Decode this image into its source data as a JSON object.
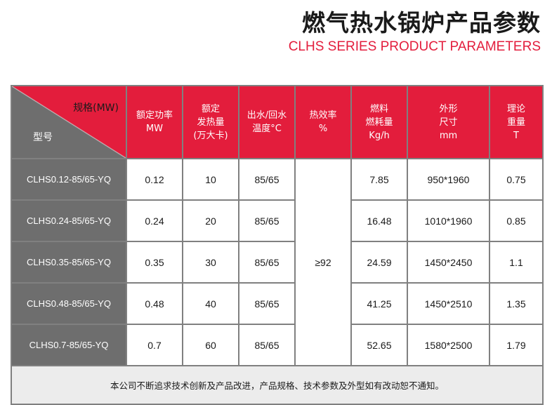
{
  "title_cn": "燃气热水锅炉产品参数",
  "title_en": "CLHS SERIES PRODUCT PARAMETERS",
  "header": {
    "spec": "规格(MW)",
    "model": "型号",
    "cols": [
      [
        "额定功率",
        "MW"
      ],
      [
        "额定",
        "发热量",
        "(万大卡)"
      ],
      [
        "出水/回水",
        "温度°C"
      ],
      [
        "热效率",
        "%"
      ],
      [
        "燃料",
        "燃耗量",
        "Kg/h"
      ],
      [
        "外形",
        "尺寸",
        "mm"
      ],
      [
        "理论",
        "重量",
        "T"
      ]
    ]
  },
  "efficiency": "≥92",
  "rows": [
    {
      "model": "CLHS0.12-85/65-YQ",
      "power": "0.12",
      "heat": "10",
      "temp": "85/65",
      "fuel": "7.85",
      "size": "950*1960",
      "weight": "0.75"
    },
    {
      "model": "CLHS0.24-85/65-YQ",
      "power": "0.24",
      "heat": "20",
      "temp": "85/65",
      "fuel": "16.48",
      "size": "1010*1960",
      "weight": "0.85"
    },
    {
      "model": "CLHS0.35-85/65-YQ",
      "power": "0.35",
      "heat": "30",
      "temp": "85/65",
      "fuel": "24.59",
      "size": "1450*2450",
      "weight": "1.1"
    },
    {
      "model": "CLHS0.48-85/65-YQ",
      "power": "0.48",
      "heat": "40",
      "temp": "85/65",
      "fuel": "41.25",
      "size": "1450*2510",
      "weight": "1.35"
    },
    {
      "model": "CLHS0.7-85/65-YQ",
      "power": "0.7",
      "heat": "60",
      "temp": "85/65",
      "fuel": "52.65",
      "size": "1580*2500",
      "weight": "1.79"
    }
  ],
  "footnote": "本公司不断追求技术创新及产品改进，产品规格、技术参数及外型如有改动恕不通知。",
  "colors": {
    "accent": "#e31d3c",
    "model_bg": "#6e6e6e",
    "note_bg": "#ececec",
    "border": "#808080"
  }
}
